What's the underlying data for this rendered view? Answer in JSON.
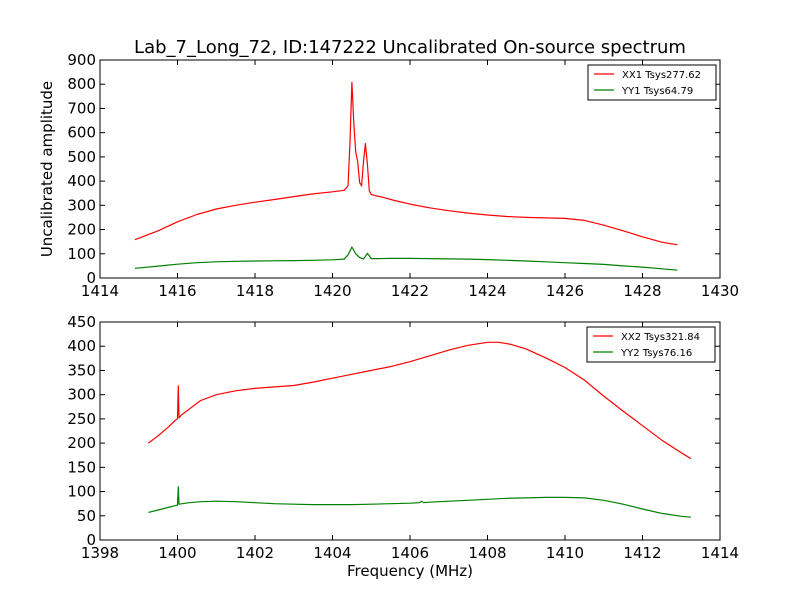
{
  "chart_data": [
    {
      "type": "line",
      "title": "Lab_7_Long_72, ID:147222 Uncalibrated On-source spectrum",
      "xlabel": "",
      "ylabel": "Uncalibrated amplitude",
      "xlim": [
        1414,
        1430
      ],
      "ylim": [
        0,
        900
      ],
      "xticks": [
        1414,
        1416,
        1418,
        1420,
        1422,
        1424,
        1426,
        1428,
        1430
      ],
      "yticks": [
        0,
        100,
        200,
        300,
        400,
        500,
        600,
        700,
        800,
        900
      ],
      "xtick_labels": [
        "1414",
        "1416",
        "1418",
        "1420",
        "1422",
        "1424",
        "1426",
        "1428",
        "1430"
      ],
      "ytick_labels": [
        "0",
        "100",
        "200",
        "300",
        "400",
        "500",
        "600",
        "700",
        "800",
        "900"
      ],
      "legend_position": "top-right",
      "series": [
        {
          "name": "XX1 Tsys277.62",
          "color": "#ff0000",
          "x": [
            1414.9,
            1415.5,
            1416.0,
            1416.5,
            1417.0,
            1417.5,
            1418.0,
            1418.5,
            1419.0,
            1419.5,
            1420.0,
            1420.3,
            1420.4,
            1420.45,
            1420.5,
            1420.55,
            1420.6,
            1420.65,
            1420.7,
            1420.75,
            1420.8,
            1420.85,
            1420.9,
            1420.95,
            1421.0,
            1421.1,
            1421.3,
            1421.6,
            1422.0,
            1422.5,
            1423.0,
            1423.5,
            1424.0,
            1424.5,
            1425.0,
            1425.5,
            1426.0,
            1426.5,
            1427.0,
            1427.5,
            1428.0,
            1428.5,
            1428.9
          ],
          "values": [
            158,
            195,
            232,
            262,
            285,
            300,
            313,
            324,
            336,
            347,
            356,
            362,
            380,
            550,
            808,
            640,
            520,
            480,
            395,
            380,
            480,
            555,
            470,
            360,
            345,
            340,
            333,
            320,
            305,
            290,
            278,
            268,
            260,
            254,
            250,
            248,
            246,
            238,
            218,
            195,
            170,
            148,
            137
          ]
        },
        {
          "name": "YY1 Tsys64.79",
          "color": "#008000",
          "x": [
            1414.9,
            1415.5,
            1416.0,
            1416.5,
            1417.0,
            1417.5,
            1418.0,
            1418.5,
            1419.0,
            1419.5,
            1420.0,
            1420.3,
            1420.4,
            1420.5,
            1420.6,
            1420.7,
            1420.8,
            1420.9,
            1421.0,
            1421.2,
            1421.5,
            1422.0,
            1422.5,
            1423.0,
            1423.5,
            1424.0,
            1424.5,
            1425.0,
            1425.5,
            1426.0,
            1426.5,
            1427.0,
            1427.5,
            1428.0,
            1428.5,
            1428.9
          ],
          "values": [
            40,
            49,
            57,
            63,
            67,
            69,
            70,
            71,
            72,
            73,
            75,
            78,
            95,
            128,
            100,
            85,
            78,
            102,
            80,
            80,
            81,
            81,
            80,
            79,
            78,
            76,
            73,
            70,
            67,
            63,
            60,
            56,
            50,
            45,
            38,
            32
          ]
        }
      ]
    },
    {
      "type": "line",
      "title": "",
      "xlabel": "Frequency (MHz)",
      "ylabel": "",
      "xlim": [
        1398,
        1414
      ],
      "ylim": [
        0,
        450
      ],
      "xticks": [
        1398,
        1400,
        1402,
        1404,
        1406,
        1408,
        1410,
        1412,
        1414
      ],
      "yticks": [
        0,
        50,
        100,
        150,
        200,
        250,
        300,
        350,
        400,
        450
      ],
      "xtick_labels": [
        "1398",
        "1400",
        "1402",
        "1404",
        "1406",
        "1408",
        "1410",
        "1412",
        "1414"
      ],
      "ytick_labels": [
        "0",
        "50",
        "100",
        "150",
        "200",
        "250",
        "300",
        "350",
        "400",
        "450"
      ],
      "legend_position": "top-right",
      "series": [
        {
          "name": "XX2 Tsys321.84",
          "color": "#ff0000",
          "x": [
            1399.25,
            1399.5,
            1399.75,
            1399.95,
            1400.0,
            1400.02,
            1400.04,
            1400.1,
            1400.3,
            1400.6,
            1401.0,
            1401.5,
            1402.0,
            1402.5,
            1403.0,
            1403.5,
            1404.0,
            1404.5,
            1405.0,
            1405.5,
            1406.0,
            1406.5,
            1407.0,
            1407.5,
            1408.0,
            1408.3,
            1408.6,
            1409.0,
            1409.5,
            1410.0,
            1410.5,
            1411.0,
            1411.5,
            1412.0,
            1412.5,
            1413.0,
            1413.25
          ],
          "values": [
            200,
            215,
            232,
            248,
            250,
            318,
            252,
            258,
            270,
            288,
            300,
            308,
            313,
            316,
            319,
            326,
            334,
            342,
            350,
            358,
            368,
            380,
            392,
            402,
            408,
            408,
            404,
            394,
            376,
            356,
            330,
            297,
            266,
            236,
            206,
            180,
            168
          ]
        },
        {
          "name": "YY2 Tsys76.16",
          "color": "#008000",
          "x": [
            1399.25,
            1399.5,
            1399.75,
            1399.95,
            1400.0,
            1400.02,
            1400.04,
            1400.3,
            1400.6,
            1401.0,
            1401.5,
            1402.0,
            1402.5,
            1403.0,
            1403.5,
            1404.0,
            1404.5,
            1405.0,
            1405.5,
            1406.0,
            1406.25,
            1406.3,
            1406.35,
            1406.5,
            1407.0,
            1407.5,
            1408.0,
            1408.5,
            1409.0,
            1409.5,
            1410.0,
            1410.5,
            1411.0,
            1411.5,
            1412.0,
            1412.5,
            1413.0,
            1413.25
          ],
          "values": [
            57,
            62,
            67,
            71,
            72,
            110,
            74,
            77,
            79,
            80,
            79,
            77,
            75,
            74,
            73,
            73,
            73,
            74,
            75,
            76,
            77,
            80,
            77,
            78,
            80,
            82,
            84,
            86,
            87,
            88,
            88,
            87,
            82,
            74,
            64,
            55,
            49,
            47
          ]
        }
      ]
    }
  ]
}
